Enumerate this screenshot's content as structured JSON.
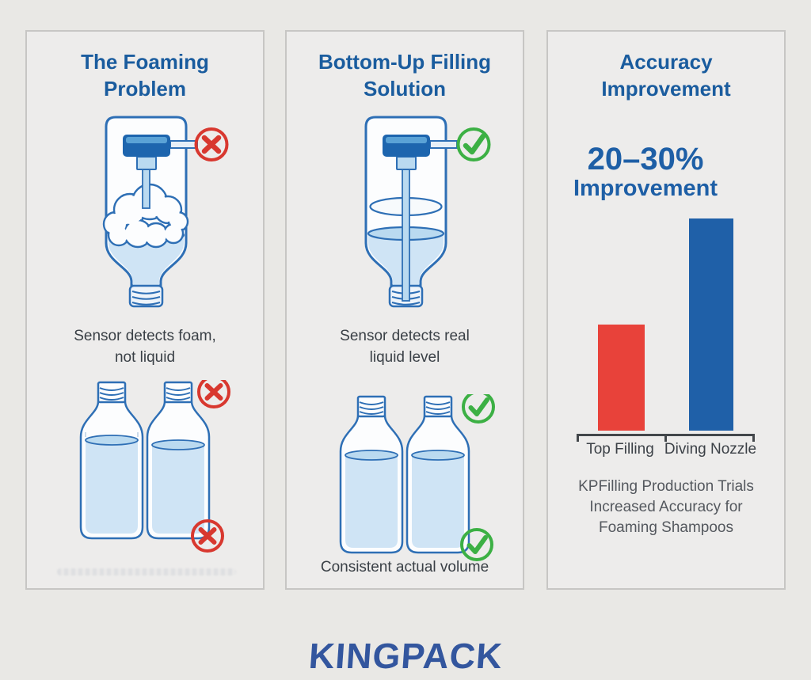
{
  "page": {
    "background": "#e9e8e5",
    "brand": "KINGPACK",
    "brand_color": "#33569e"
  },
  "panels": [
    {
      "id": "problem",
      "title": "The Foaming\nProblem",
      "caption": "Sensor detects foam,\nnot liquid",
      "status_icons": [
        "red-x-circle",
        "red-x-circle",
        "red-x-circle"
      ],
      "illustrations": [
        "top-filling-nozzle-with-foam",
        "two-bottles-inconsistent-fill"
      ]
    },
    {
      "id": "solution",
      "title": "Bottom-Up Filling\nSolution",
      "caption": "Sensor detects real\nliquid level",
      "bottom_caption": "Consistent actual volume",
      "status_icons": [
        "green-check-circle",
        "green-check-circle",
        "green-check-circle"
      ],
      "illustrations": [
        "diving-nozzle-bottom-up-fill",
        "two-bottles-consistent-fill"
      ]
    },
    {
      "id": "results",
      "title": "Accuracy\nImprovement",
      "highlight_value": "20–30%",
      "highlight_label": "Improvement",
      "caption": "KPFilling Production Trials\nIncreased Accuracy for\nFoaming Shampoos"
    }
  ],
  "chart_data": {
    "type": "bar",
    "categories": [
      "Top Filling",
      "Diving Nozzle"
    ],
    "values": [
      50,
      100
    ],
    "values_note": "no numeric axis shown; relative bar heights ~1:2 depicting 20–30% accuracy improvement",
    "colors": [
      "#e8423a",
      "#1f60a8"
    ],
    "title": "Accuracy Improvement",
    "annotation": "20–30% Improvement",
    "caption": "KPFilling Production Trials Increased Accuracy for Foaming Shampoos",
    "xlabel": "",
    "ylabel": "",
    "grid": false,
    "legend": false,
    "axis_style": "baseline with end and center tick marks"
  },
  "colors": {
    "title_blue": "#1a5c9e",
    "outline_blue": "#2e6fb5",
    "liquid": "#cfe4f5",
    "liquid_surface": "#badaf0",
    "nozzle_dark": "#1d65ae",
    "nozzle_light": "#5aa2d6",
    "reject_red": "#d8382f",
    "approve_green": "#3cb044",
    "panel_bg": "#edeceb",
    "panel_border": "#c7c6c4"
  }
}
